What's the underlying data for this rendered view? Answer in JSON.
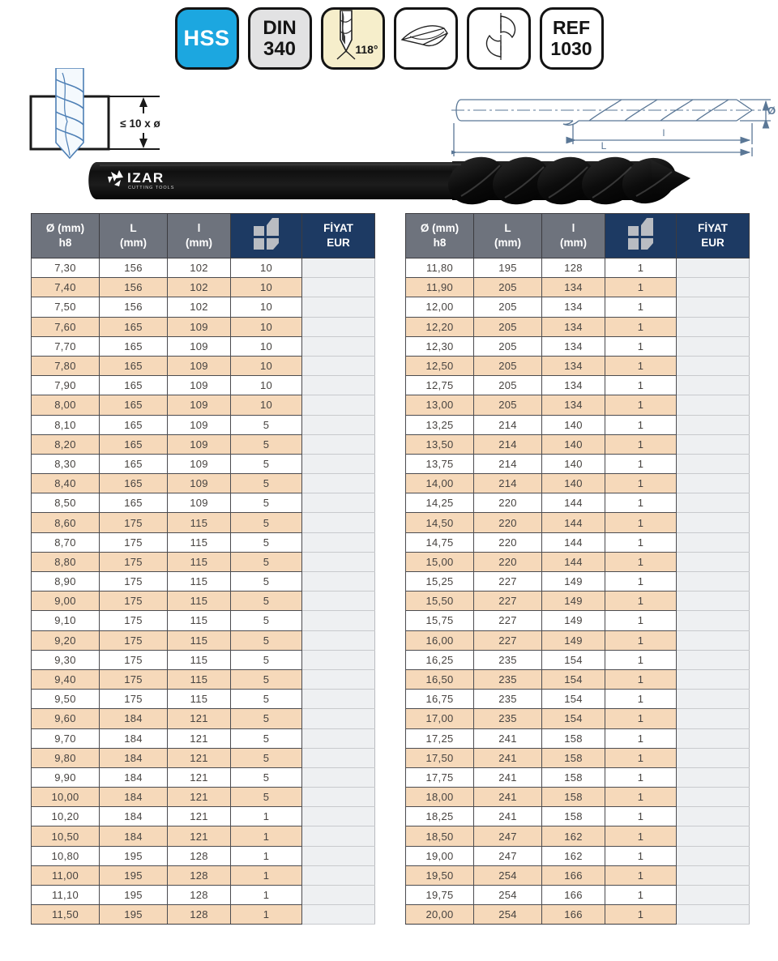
{
  "badges": {
    "material": "HSS",
    "standard_line1": "DIN",
    "standard_line2": "340",
    "point_angle": "118°",
    "ref_line1": "REF",
    "ref_line2": "1030"
  },
  "diagrams": {
    "shank_note": "≤ 10 x ø",
    "dim_diameter": "Ø",
    "dim_flute_length": "l",
    "dim_total_length": "L"
  },
  "photo": {
    "brand": "IZAR",
    "brand_sub": "CUTTING TOOLS"
  },
  "table": {
    "headers": [
      {
        "line1": "Ø (mm)",
        "line2": "h8"
      },
      {
        "line1": "L",
        "line2": "(mm)"
      },
      {
        "line1": "l",
        "line2": "(mm)"
      },
      {
        "icon": "packaging-icon"
      },
      {
        "line1": "FİYAT",
        "line2": "EUR"
      }
    ]
  },
  "tables": {
    "left": {
      "rows": [
        [
          "7,30",
          "156",
          "102",
          "10"
        ],
        [
          "7,40",
          "156",
          "102",
          "10"
        ],
        [
          "7,50",
          "156",
          "102",
          "10"
        ],
        [
          "7,60",
          "165",
          "109",
          "10"
        ],
        [
          "7,70",
          "165",
          "109",
          "10"
        ],
        [
          "7,80",
          "165",
          "109",
          "10"
        ],
        [
          "7,90",
          "165",
          "109",
          "10"
        ],
        [
          "8,00",
          "165",
          "109",
          "10"
        ],
        [
          "8,10",
          "165",
          "109",
          "5"
        ],
        [
          "8,20",
          "165",
          "109",
          "5"
        ],
        [
          "8,30",
          "165",
          "109",
          "5"
        ],
        [
          "8,40",
          "165",
          "109",
          "5"
        ],
        [
          "8,50",
          "165",
          "109",
          "5"
        ],
        [
          "8,60",
          "175",
          "115",
          "5"
        ],
        [
          "8,70",
          "175",
          "115",
          "5"
        ],
        [
          "8,80",
          "175",
          "115",
          "5"
        ],
        [
          "8,90",
          "175",
          "115",
          "5"
        ],
        [
          "9,00",
          "175",
          "115",
          "5"
        ],
        [
          "9,10",
          "175",
          "115",
          "5"
        ],
        [
          "9,20",
          "175",
          "115",
          "5"
        ],
        [
          "9,30",
          "175",
          "115",
          "5"
        ],
        [
          "9,40",
          "175",
          "115",
          "5"
        ],
        [
          "9,50",
          "175",
          "115",
          "5"
        ],
        [
          "9,60",
          "184",
          "121",
          "5"
        ],
        [
          "9,70",
          "184",
          "121",
          "5"
        ],
        [
          "9,80",
          "184",
          "121",
          "5"
        ],
        [
          "9,90",
          "184",
          "121",
          "5"
        ],
        [
          "10,00",
          "184",
          "121",
          "5"
        ],
        [
          "10,20",
          "184",
          "121",
          "1"
        ],
        [
          "10,50",
          "184",
          "121",
          "1"
        ],
        [
          "10,80",
          "195",
          "128",
          "1"
        ],
        [
          "11,00",
          "195",
          "128",
          "1"
        ],
        [
          "11,10",
          "195",
          "128",
          "1"
        ],
        [
          "11,50",
          "195",
          "128",
          "1"
        ]
      ]
    },
    "right": {
      "rows": [
        [
          "11,80",
          "195",
          "128",
          "1"
        ],
        [
          "11,90",
          "205",
          "134",
          "1"
        ],
        [
          "12,00",
          "205",
          "134",
          "1"
        ],
        [
          "12,20",
          "205",
          "134",
          "1"
        ],
        [
          "12,30",
          "205",
          "134",
          "1"
        ],
        [
          "12,50",
          "205",
          "134",
          "1"
        ],
        [
          "12,75",
          "205",
          "134",
          "1"
        ],
        [
          "13,00",
          "205",
          "134",
          "1"
        ],
        [
          "13,25",
          "214",
          "140",
          "1"
        ],
        [
          "13,50",
          "214",
          "140",
          "1"
        ],
        [
          "13,75",
          "214",
          "140",
          "1"
        ],
        [
          "14,00",
          "214",
          "140",
          "1"
        ],
        [
          "14,25",
          "220",
          "144",
          "1"
        ],
        [
          "14,50",
          "220",
          "144",
          "1"
        ],
        [
          "14,75",
          "220",
          "144",
          "1"
        ],
        [
          "15,00",
          "220",
          "144",
          "1"
        ],
        [
          "15,25",
          "227",
          "149",
          "1"
        ],
        [
          "15,50",
          "227",
          "149",
          "1"
        ],
        [
          "15,75",
          "227",
          "149",
          "1"
        ],
        [
          "16,00",
          "227",
          "149",
          "1"
        ],
        [
          "16,25",
          "235",
          "154",
          "1"
        ],
        [
          "16,50",
          "235",
          "154",
          "1"
        ],
        [
          "16,75",
          "235",
          "154",
          "1"
        ],
        [
          "17,00",
          "235",
          "154",
          "1"
        ],
        [
          "17,25",
          "241",
          "158",
          "1"
        ],
        [
          "17,50",
          "241",
          "158",
          "1"
        ],
        [
          "17,75",
          "241",
          "158",
          "1"
        ],
        [
          "18,00",
          "241",
          "158",
          "1"
        ],
        [
          "18,25",
          "241",
          "158",
          "1"
        ],
        [
          "18,50",
          "247",
          "162",
          "1"
        ],
        [
          "19,00",
          "247",
          "162",
          "1"
        ],
        [
          "19,50",
          "254",
          "166",
          "1"
        ],
        [
          "19,75",
          "254",
          "166",
          "1"
        ],
        [
          "20,00",
          "254",
          "166",
          "1"
        ]
      ]
    }
  },
  "colors": {
    "hss_blue": "#1ca7e0",
    "header_navy": "#1d3a63",
    "header_gray": "#6e737d",
    "row_peach": "#f6d9ba",
    "price_gray": "#eef0f2",
    "drawing_blue": "#5a7796",
    "illu_blue": "#4d7fb5"
  }
}
